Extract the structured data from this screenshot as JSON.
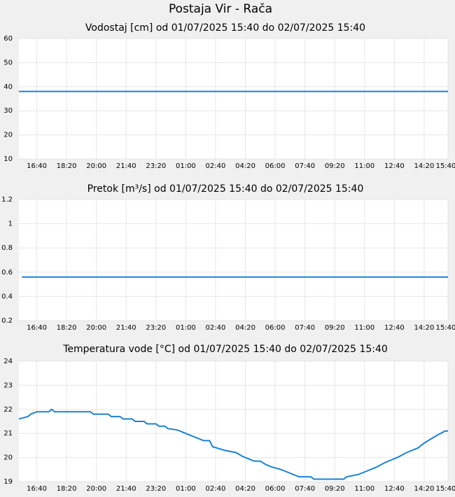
{
  "title": "Postaja Vir - Rača",
  "chart_data": [
    {
      "type": "line",
      "title": "Vodostaj [cm] od 01/07/2025 15:40 do 02/07/2025 15:40",
      "x": [
        0,
        1440
      ],
      "values": [
        38,
        38
      ],
      "color": "#1a82d2",
      "xlim": [
        0,
        1440
      ],
      "xticks": [
        {
          "value": 60,
          "label": "16:40"
        },
        {
          "value": 160,
          "label": "18:20"
        },
        {
          "value": 260,
          "label": "20:00"
        },
        {
          "value": 360,
          "label": "21:40"
        },
        {
          "value": 460,
          "label": "23:20"
        },
        {
          "value": 560,
          "label": "01:00"
        },
        {
          "value": 660,
          "label": "02:40"
        },
        {
          "value": 760,
          "label": "04:20"
        },
        {
          "value": 860,
          "label": "06:00"
        },
        {
          "value": 960,
          "label": "07:40"
        },
        {
          "value": 1060,
          "label": "09:20"
        },
        {
          "value": 1160,
          "label": "11:00"
        },
        {
          "value": 1260,
          "label": "12:40"
        },
        {
          "value": 1360,
          "label": "14:20"
        },
        {
          "value": 1440,
          "label": "15:40"
        }
      ],
      "ylim": [
        10,
        60
      ],
      "yticks": [
        10,
        20,
        30,
        40,
        50,
        60
      ],
      "grid": true
    },
    {
      "type": "line",
      "title": "Pretok [m³/s] od 01/07/2025 15:40 do 02/07/2025 15:40",
      "x": [
        10,
        1440
      ],
      "values": [
        0.56,
        0.56
      ],
      "color": "#1a82d2",
      "xlim": [
        0,
        1440
      ],
      "xticks": [
        {
          "value": 60,
          "label": "16:40"
        },
        {
          "value": 160,
          "label": "18:20"
        },
        {
          "value": 260,
          "label": "20:00"
        },
        {
          "value": 360,
          "label": "21:40"
        },
        {
          "value": 460,
          "label": "23:20"
        },
        {
          "value": 560,
          "label": "01:00"
        },
        {
          "value": 660,
          "label": "02:40"
        },
        {
          "value": 760,
          "label": "04:20"
        },
        {
          "value": 860,
          "label": "06:00"
        },
        {
          "value": 960,
          "label": "07:40"
        },
        {
          "value": 1060,
          "label": "09:20"
        },
        {
          "value": 1160,
          "label": "11:00"
        },
        {
          "value": 1260,
          "label": "12:40"
        },
        {
          "value": 1360,
          "label": "14:20"
        },
        {
          "value": 1440,
          "label": "15:40"
        }
      ],
      "ylim": [
        0.2,
        1.2
      ],
      "yticks": [
        0.2,
        0.4,
        0.6,
        0.8,
        1,
        1.2
      ],
      "grid": true
    },
    {
      "type": "line",
      "title": "Temperatura vode [°C] od 01/07/2025 15:40 do 02/07/2025 15:40",
      "x": [
        0,
        30,
        40,
        60,
        100,
        110,
        120,
        240,
        250,
        300,
        310,
        340,
        350,
        380,
        390,
        420,
        430,
        460,
        470,
        490,
        500,
        530,
        550,
        570,
        600,
        620,
        640,
        650,
        690,
        730,
        750,
        770,
        790,
        810,
        830,
        850,
        880,
        900,
        920,
        940,
        980,
        990,
        1090,
        1100,
        1140,
        1160,
        1200,
        1230,
        1270,
        1300,
        1340,
        1360,
        1400,
        1430,
        1440
      ],
      "values": [
        21.6,
        21.7,
        21.8,
        21.9,
        21.9,
        22.0,
        21.9,
        21.9,
        21.8,
        21.8,
        21.7,
        21.7,
        21.6,
        21.6,
        21.5,
        21.5,
        21.4,
        21.4,
        21.3,
        21.3,
        21.2,
        21.15,
        21.05,
        20.95,
        20.8,
        20.7,
        20.7,
        20.45,
        20.3,
        20.2,
        20.05,
        19.95,
        19.85,
        19.85,
        19.7,
        19.6,
        19.5,
        19.4,
        19.3,
        19.2,
        19.2,
        19.1,
        19.1,
        19.2,
        19.3,
        19.4,
        19.6,
        19.8,
        20.0,
        20.2,
        20.4,
        20.6,
        20.9,
        21.1,
        21.1
      ],
      "color": "#1a82d2",
      "xlim": [
        0,
        1440
      ],
      "xticks": [
        {
          "value": 60,
          "label": "16:40"
        },
        {
          "value": 160,
          "label": "18:20"
        },
        {
          "value": 260,
          "label": "20:00"
        },
        {
          "value": 360,
          "label": "21:40"
        },
        {
          "value": 460,
          "label": "23:20"
        },
        {
          "value": 560,
          "label": "01:00"
        },
        {
          "value": 660,
          "label": "02:40"
        },
        {
          "value": 760,
          "label": "04:20"
        },
        {
          "value": 860,
          "label": "06:00"
        },
        {
          "value": 960,
          "label": "07:40"
        },
        {
          "value": 1060,
          "label": "09:20"
        },
        {
          "value": 1160,
          "label": "11:00"
        },
        {
          "value": 1260,
          "label": "12:40"
        },
        {
          "value": 1360,
          "label": "14:20"
        },
        {
          "value": 1440,
          "label": "15:40"
        }
      ],
      "ylim": [
        19,
        24
      ],
      "yticks": [
        19,
        20,
        21,
        22,
        23,
        24
      ],
      "grid": true
    }
  ]
}
